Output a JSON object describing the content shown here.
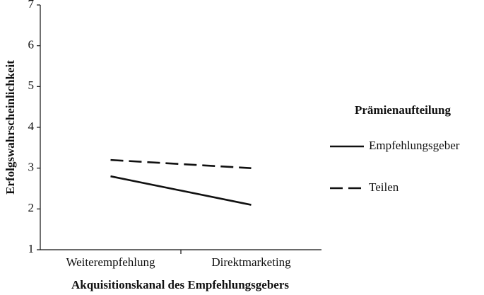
{
  "chart_data": {
    "type": "line",
    "x_label": "Akquisitionskanal des Empfehlungsgebers",
    "y_label": "Erfolgswahrscheinlichkeit",
    "categories": [
      "Weiterempfehlung",
      "Direktmarketing"
    ],
    "series": [
      {
        "name": "Empfehlungsgeber",
        "color": "#111111",
        "linestyle": "solid",
        "values": [
          2.8,
          2.1
        ]
      },
      {
        "name": "Teilen",
        "color": "#111111",
        "linestyle": "dashed",
        "values": [
          3.2,
          3.0
        ]
      }
    ],
    "ylim": [
      1,
      7
    ],
    "yticks": [
      1,
      2,
      3,
      4,
      5,
      6,
      7
    ],
    "grid": false,
    "legend_title": "Prämienaufteilung",
    "legend": "right"
  }
}
